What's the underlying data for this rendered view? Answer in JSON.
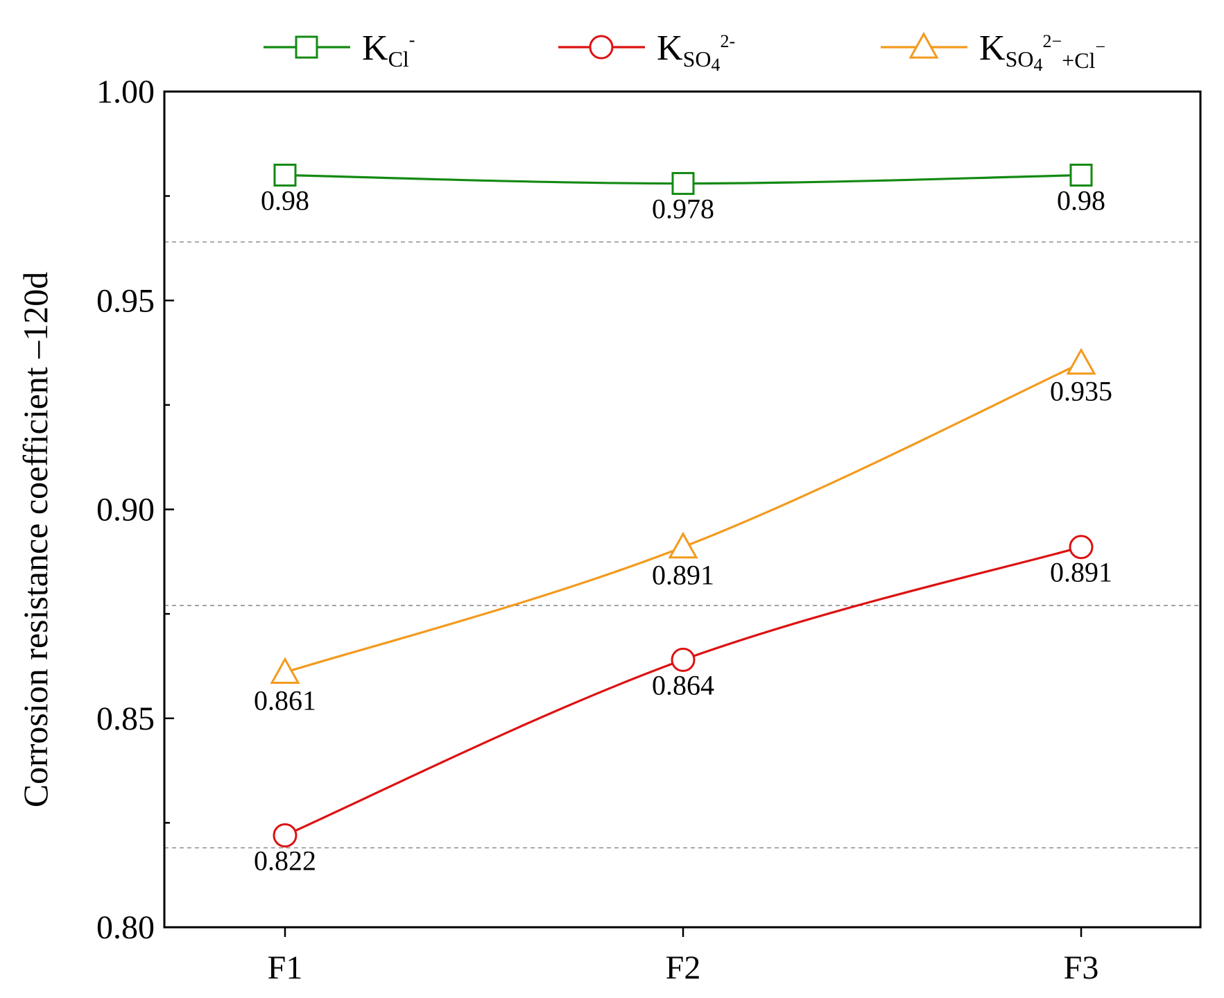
{
  "chart_data": {
    "type": "line",
    "categories": [
      "F1",
      "F2",
      "F3"
    ],
    "ylabel": "Corrosion resistance coefficient –120d",
    "xlabel": "",
    "ylim": [
      0.8,
      1.0
    ],
    "y_ticks": [
      "0.80",
      "0.85",
      "0.90",
      "0.95",
      "1.00"
    ],
    "grid_lines": [
      0.819,
      0.877,
      0.964
    ],
    "legend_position": "top",
    "series": [
      {
        "name": "K_Cl-",
        "legend": {
          "main": "K",
          "sub": "Cl",
          "sup": "-",
          "sub2": "",
          "sup2": ""
        },
        "color": "#138a13",
        "marker": "square",
        "values": [
          0.98,
          0.978,
          0.98
        ],
        "labels": [
          "0.98",
          "0.978",
          "0.98"
        ]
      },
      {
        "name": "K_SO4^2-",
        "legend": {
          "main": "K",
          "sub": "SO",
          "sub2": "4",
          "sup": "2-",
          "sup2": ""
        },
        "color": "#dd1111",
        "marker": "circle",
        "values": [
          0.822,
          0.864,
          0.891
        ],
        "labels": [
          "0.822",
          "0.864",
          "0.891"
        ]
      },
      {
        "name": "K_SO4^2-+Cl-",
        "legend": {
          "main": "K",
          "sub": "SO",
          "sub2": "4",
          "sup": "2−",
          "after": "+Cl",
          "sup2": "−"
        },
        "color": "#f39a1e",
        "marker": "triangle",
        "values": [
          0.861,
          0.891,
          0.935
        ],
        "labels": [
          "0.861",
          "0.891",
          "0.935"
        ]
      }
    ]
  }
}
